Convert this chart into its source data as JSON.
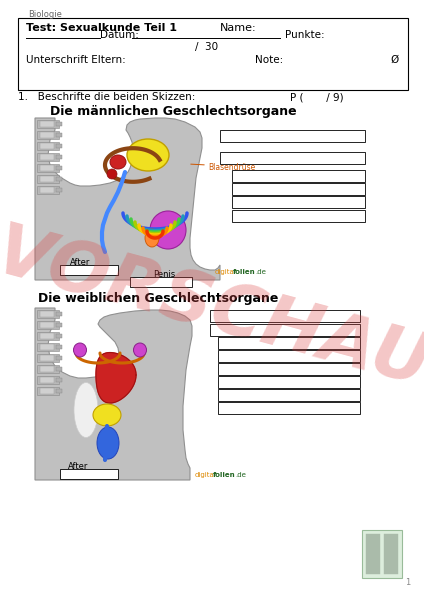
{
  "bg_color": "#ffffff",
  "page_title": "Biologie",
  "header_title_left": "Test: Sexualkunde Teil 1",
  "header_title_right": "Name:",
  "header_datum": "Datum:",
  "header_punkte": "Punkte:",
  "header_score": "/  30",
  "header_unterschrift": "Unterschrift Eltern:",
  "header_note": "Note:",
  "header_phi": "Ø",
  "question": "1.   Beschrifte die beiden Skizzen:",
  "question_right": "P (       / 9)",
  "section1_title": "Die männlichen Geschlechtsorgane",
  "section2_title": "Die weiblichen Geschlechtsorgane",
  "watermark": "VORSCHAU",
  "watermark_color": "#dd4444",
  "label_blasendruese": "Blasendrüse",
  "label_after1": "After",
  "label_penis": "Penis",
  "label_after2": "After",
  "brand_orange": "#dd8800",
  "brand_green": "#226622",
  "spine_color": "#b0b0b0",
  "spine_edge": "#888888",
  "body_fill": "#c0c0c0",
  "body_edge": "#909090"
}
